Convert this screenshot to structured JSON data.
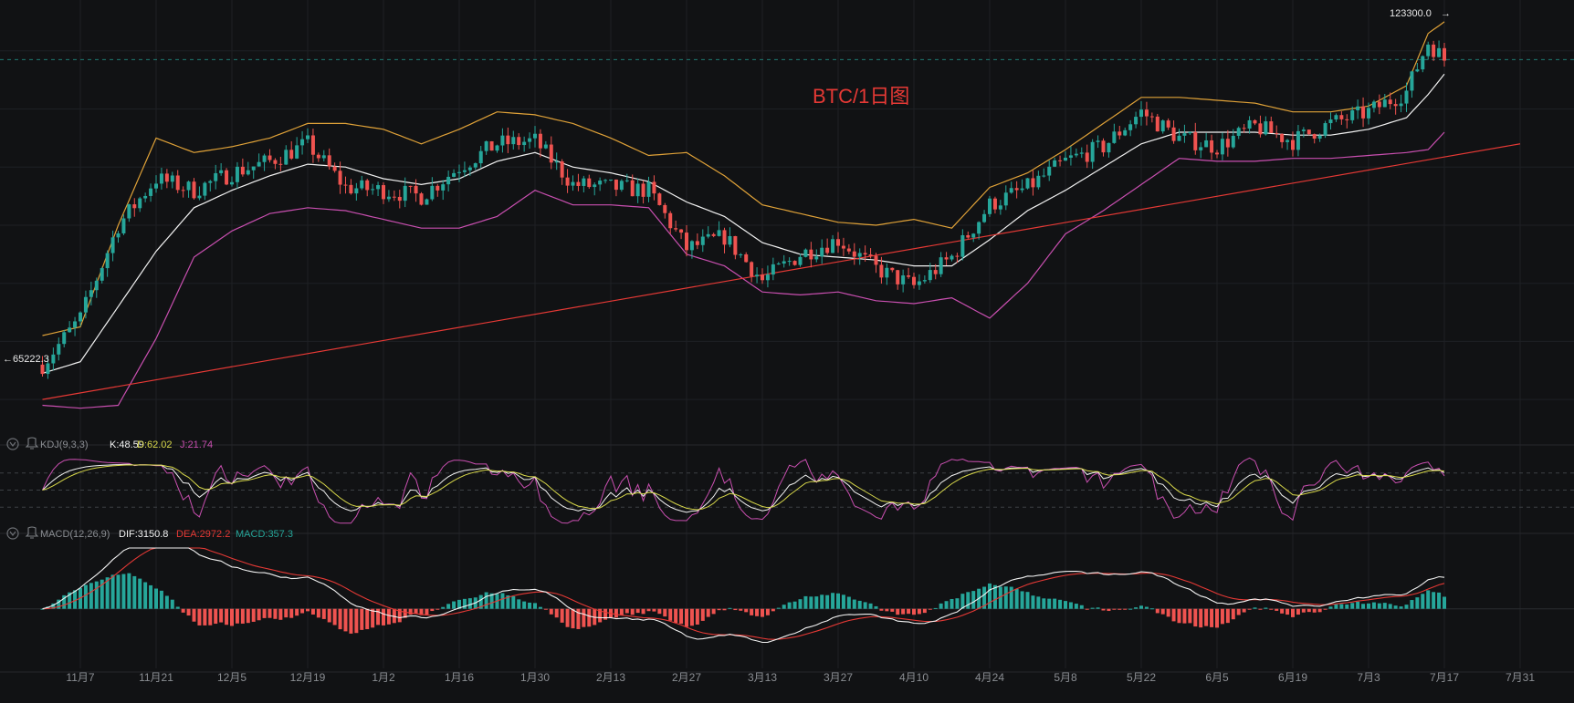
{
  "chart_data": {
    "type": "candlestick",
    "title": "BTC/1日图",
    "main": {
      "high_label": "123300.0",
      "low_label": "65222.3",
      "dashed_reference_price": 118500,
      "y_range": [
        55000,
        127500
      ],
      "indicators": [
        "Bollinger upper",
        "Bollinger middle",
        "Bollinger lower"
      ],
      "trendline": {
        "start": {
          "x": "10月31",
          "y": 60000
        },
        "end": {
          "x": "7月31",
          "y": 104000
        }
      },
      "price_path_approx": [
        {
          "x": "10月31",
          "y": 66000
        },
        {
          "x": "11月7",
          "y": 74000
        },
        {
          "x": "11月14",
          "y": 90000
        },
        {
          "x": "11月21",
          "y": 98000
        },
        {
          "x": "11月28",
          "y": 96000
        },
        {
          "x": "12月5",
          "y": 99000
        },
        {
          "x": "12月12",
          "y": 101000
        },
        {
          "x": "12月19",
          "y": 104000
        },
        {
          "x": "12月26",
          "y": 96500
        },
        {
          "x": "1月2",
          "y": 96000
        },
        {
          "x": "1月9",
          "y": 95000
        },
        {
          "x": "1月16",
          "y": 100000
        },
        {
          "x": "1月23",
          "y": 104000
        },
        {
          "x": "1月30",
          "y": 104500
        },
        {
          "x": "2月6",
          "y": 97000
        },
        {
          "x": "2月13",
          "y": 96500
        },
        {
          "x": "2月20",
          "y": 96000
        },
        {
          "x": "2月27",
          "y": 86000
        },
        {
          "x": "3月6",
          "y": 88000
        },
        {
          "x": "3月13",
          "y": 80500
        },
        {
          "x": "3月20",
          "y": 85000
        },
        {
          "x": "3月27",
          "y": 87500
        },
        {
          "x": "4月3",
          "y": 82500
        },
        {
          "x": "4月10",
          "y": 79500
        },
        {
          "x": "4月17",
          "y": 84500
        },
        {
          "x": "4月24",
          "y": 93500
        },
        {
          "x": "5月1",
          "y": 96500
        },
        {
          "x": "5月8",
          "y": 101000
        },
        {
          "x": "5月15",
          "y": 103500
        },
        {
          "x": "5月22",
          "y": 109500
        },
        {
          "x": "5月29",
          "y": 105000
        },
        {
          "x": "6月5",
          "y": 103500
        },
        {
          "x": "6月12",
          "y": 107000
        },
        {
          "x": "6月19",
          "y": 104500
        },
        {
          "x": "6月26",
          "y": 107500
        },
        {
          "x": "7月3",
          "y": 109500
        },
        {
          "x": "7月10",
          "y": 113000
        },
        {
          "x": "7月14",
          "y": 121500
        },
        {
          "x": "7月17",
          "y": 118500
        }
      ],
      "bollinger_upper_approx": [
        {
          "x": "10月31",
          "y": 71000
        },
        {
          "x": "11月7",
          "y": 72500
        },
        {
          "x": "11月14",
          "y": 90000
        },
        {
          "x": "11月21",
          "y": 105000
        },
        {
          "x": "11月28",
          "y": 102500
        },
        {
          "x": "12月5",
          "y": 103500
        },
        {
          "x": "12月12",
          "y": 105000
        },
        {
          "x": "12月19",
          "y": 107500
        },
        {
          "x": "12月26",
          "y": 107500
        },
        {
          "x": "1月2",
          "y": 106500
        },
        {
          "x": "1月9",
          "y": 104000
        },
        {
          "x": "1月16",
          "y": 106500
        },
        {
          "x": "1月23",
          "y": 109500
        },
        {
          "x": "1月30",
          "y": 109000
        },
        {
          "x": "2月6",
          "y": 107500
        },
        {
          "x": "2月13",
          "y": 105000
        },
        {
          "x": "2月20",
          "y": 102000
        },
        {
          "x": "2月27",
          "y": 102500
        },
        {
          "x": "3月6",
          "y": 98500
        },
        {
          "x": "3月13",
          "y": 93500
        },
        {
          "x": "3月20",
          "y": 92000
        },
        {
          "x": "3月27",
          "y": 90500
        },
        {
          "x": "4月3",
          "y": 90000
        },
        {
          "x": "4月10",
          "y": 91000
        },
        {
          "x": "4月17",
          "y": 89500
        },
        {
          "x": "4月24",
          "y": 96500
        },
        {
          "x": "5月1",
          "y": 99000
        },
        {
          "x": "5月8",
          "y": 103000
        },
        {
          "x": "5月15",
          "y": 107500
        },
        {
          "x": "5月22",
          "y": 112000
        },
        {
          "x": "5月29",
          "y": 112000
        },
        {
          "x": "6月5",
          "y": 111500
        },
        {
          "x": "6月12",
          "y": 111000
        },
        {
          "x": "6月19",
          "y": 109500
        },
        {
          "x": "6月26",
          "y": 109500
        },
        {
          "x": "7月3",
          "y": 110500
        },
        {
          "x": "7月10",
          "y": 114000
        },
        {
          "x": "7月14",
          "y": 123000
        },
        {
          "x": "7月17",
          "y": 125000
        }
      ],
      "bollinger_middle_approx": [
        {
          "x": "10月31",
          "y": 64500
        },
        {
          "x": "11月7",
          "y": 66500
        },
        {
          "x": "11月14",
          "y": 76000
        },
        {
          "x": "11月21",
          "y": 85500
        },
        {
          "x": "11月28",
          "y": 93000
        },
        {
          "x": "12月5",
          "y": 96000
        },
        {
          "x": "12月12",
          "y": 98500
        },
        {
          "x": "12月19",
          "y": 100500
        },
        {
          "x": "12月26",
          "y": 100000
        },
        {
          "x": "1月2",
          "y": 98000
        },
        {
          "x": "1月9",
          "y": 97000
        },
        {
          "x": "1月16",
          "y": 98000
        },
        {
          "x": "1月23",
          "y": 101000
        },
        {
          "x": "1月30",
          "y": 102500
        },
        {
          "x": "2月6",
          "y": 100000
        },
        {
          "x": "2月13",
          "y": 99000
        },
        {
          "x": "2月20",
          "y": 97500
        },
        {
          "x": "2月27",
          "y": 94000
        },
        {
          "x": "3月6",
          "y": 91500
        },
        {
          "x": "3月13",
          "y": 87000
        },
        {
          "x": "3月20",
          "y": 85000
        },
        {
          "x": "3月27",
          "y": 84500
        },
        {
          "x": "4月3",
          "y": 84000
        },
        {
          "x": "4月10",
          "y": 83000
        },
        {
          "x": "4月17",
          "y": 83000
        },
        {
          "x": "4月24",
          "y": 87500
        },
        {
          "x": "5月1",
          "y": 92500
        },
        {
          "x": "5月8",
          "y": 96000
        },
        {
          "x": "5月15",
          "y": 100000
        },
        {
          "x": "5月22",
          "y": 104000
        },
        {
          "x": "5月29",
          "y": 106000
        },
        {
          "x": "6月5",
          "y": 106000
        },
        {
          "x": "6月12",
          "y": 106000
        },
        {
          "x": "6月19",
          "y": 105500
        },
        {
          "x": "6月26",
          "y": 105500
        },
        {
          "x": "7月3",
          "y": 106500
        },
        {
          "x": "7月10",
          "y": 108500
        },
        {
          "x": "7月14",
          "y": 112500
        },
        {
          "x": "7月17",
          "y": 116000
        }
      ],
      "bollinger_lower_approx": [
        {
          "x": "10月31",
          "y": 59000
        },
        {
          "x": "11月7",
          "y": 58500
        },
        {
          "x": "11月14",
          "y": 59000
        },
        {
          "x": "11月21",
          "y": 70500
        },
        {
          "x": "11月28",
          "y": 84500
        },
        {
          "x": "12月5",
          "y": 89000
        },
        {
          "x": "12月12",
          "y": 92000
        },
        {
          "x": "12月19",
          "y": 93000
        },
        {
          "x": "12月26",
          "y": 92500
        },
        {
          "x": "1月2",
          "y": 91000
        },
        {
          "x": "1月9",
          "y": 89500
        },
        {
          "x": "1月16",
          "y": 89500
        },
        {
          "x": "1月23",
          "y": 91500
        },
        {
          "x": "1月30",
          "y": 96000
        },
        {
          "x": "2月6",
          "y": 93500
        },
        {
          "x": "2月13",
          "y": 93500
        },
        {
          "x": "2月20",
          "y": 93000
        },
        {
          "x": "2月27",
          "y": 85000
        },
        {
          "x": "3月6",
          "y": 83000
        },
        {
          "x": "3月13",
          "y": 78500
        },
        {
          "x": "3月20",
          "y": 78000
        },
        {
          "x": "3月27",
          "y": 78500
        },
        {
          "x": "4月3",
          "y": 77000
        },
        {
          "x": "4月10",
          "y": 76500
        },
        {
          "x": "4月17",
          "y": 77500
        },
        {
          "x": "4月24",
          "y": 74000
        },
        {
          "x": "5月1",
          "y": 80000
        },
        {
          "x": "5月8",
          "y": 88500
        },
        {
          "x": "5月15",
          "y": 92500
        },
        {
          "x": "5月22",
          "y": 97000
        },
        {
          "x": "5月29",
          "y": 101500
        },
        {
          "x": "6月5",
          "y": 101000
        },
        {
          "x": "6月12",
          "y": 101000
        },
        {
          "x": "6月19",
          "y": 101500
        },
        {
          "x": "6月26",
          "y": 101500
        },
        {
          "x": "7月3",
          "y": 102000
        },
        {
          "x": "7月10",
          "y": 102500
        },
        {
          "x": "7月14",
          "y": 103000
        },
        {
          "x": "7月17",
          "y": 106000
        }
      ]
    },
    "kdj": {
      "label": "KDJ(9,3,3)",
      "K_label": "K:48.59",
      "D_label": "D:62.02",
      "J_label": "J:21.74",
      "levels": [
        80,
        50,
        20
      ],
      "y_range": [
        -10,
        110
      ]
    },
    "macd": {
      "label": "MACD(12,26,9)",
      "DIF_label": "DIF:3150.8",
      "DEA_label": "DEA:2972.2",
      "MACD_label": "MACD:357.3",
      "y_range": [
        -5500,
        6500
      ]
    },
    "x_ticks": [
      "11月7",
      "11月21",
      "12月5",
      "12月19",
      "1月2",
      "1月16",
      "1月30",
      "2月13",
      "2月27",
      "3月13",
      "3月27",
      "4月10",
      "4月24",
      "5月8",
      "5月22",
      "6月5",
      "6月19",
      "7月3",
      "7月17",
      "7月31"
    ],
    "colors": {
      "up": "#26a69a",
      "down": "#ef5350",
      "boll_upper": "#e0a238",
      "boll_middle": "#f2f2f2",
      "boll_lower": "#c94fb0",
      "trendline": "#e53935",
      "k": "#f2f2f2",
      "d": "#d8d84a",
      "j": "#c94fb0",
      "dif": "#f2f2f2",
      "dea": "#e53935",
      "title": "#e53935"
    }
  }
}
